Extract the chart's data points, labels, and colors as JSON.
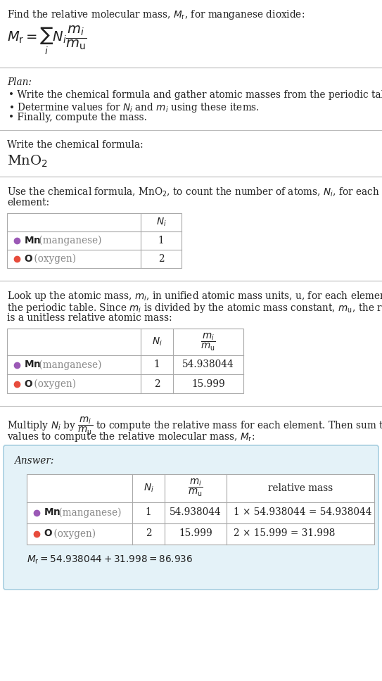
{
  "title_text": "Find the relative molecular mass, $M_{\\mathrm{r}}$, for manganese dioxide:",
  "formula_display": "$M_{\\mathrm{r}} = \\sum_{i} N_i\\dfrac{m_i}{m_{\\mathrm{u}}}$",
  "plan_title": "Plan:",
  "plan_bullets": [
    "Write the chemical formula and gather atomic masses from the periodic table.",
    "Determine values for $N_i$ and $m_i$ using these items.",
    "Finally, compute the mass."
  ],
  "section2_text": "Write the chemical formula:",
  "chemical_formula_line1": "MnO",
  "chemical_formula_sub": "2",
  "section3_line1": "Use the chemical formula, MnO$_2$, to count the number of atoms, $N_i$, for each",
  "section3_line2": "element:",
  "section4_line1": "Look up the atomic mass, $m_i$, in unified atomic mass units, u, for each element in",
  "section4_line2": "the periodic table. Since $m_i$ is divided by the atomic mass constant, $m_{\\mathrm{u}}$, the result",
  "section4_line3": "is a unitless relative atomic mass:",
  "section5_line1": "Multiply $N_i$ by $\\dfrac{m_i}{m_{\\mathrm{u}}}$ to compute the relative mass for each element. Then sum those",
  "section5_line2": "values to compute the relative molecular mass, $M_{\\mathrm{r}}$:",
  "answer_label": "Answer:",
  "final_eq": "$M_{\\mathrm{r}} = 54.938044 + 31.998 = 86.936$",
  "mn_color": "#9b59b6",
  "o_color": "#e74c3c",
  "bg_color": "#ffffff",
  "answer_bg": "#e4f2f8",
  "answer_border": "#a8cfe0",
  "sep_color": "#bbbbbb",
  "text_color": "#222222",
  "gray_color": "#888888",
  "table_border_color": "#aaaaaa",
  "mn_N": "1",
  "o_N": "2",
  "mn_mass": "54.938044",
  "o_mass": "15.999",
  "mn_rel": "1 × 54.938044 = 54.938044",
  "o_rel": "2 × 15.999 = 31.998"
}
